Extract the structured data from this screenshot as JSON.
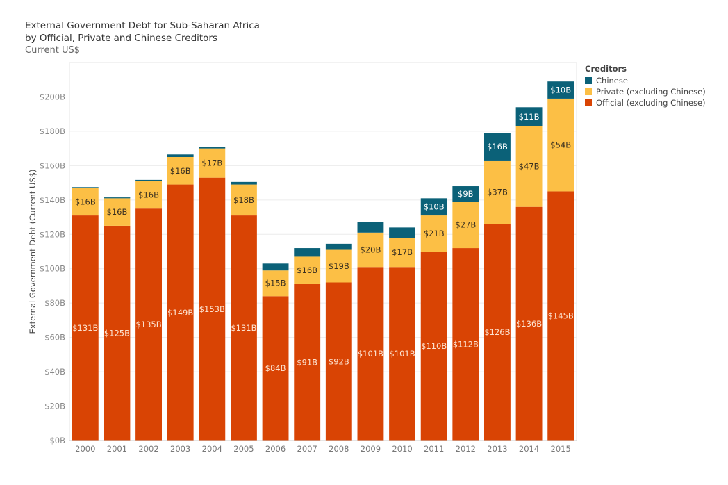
{
  "title_lines": [
    "External Government Debt for Sub-Saharan Africa",
    "by Official, Private and Chinese Creditors"
  ],
  "subtitle": "Current US$",
  "legend": {
    "title": "Creditors",
    "items": [
      {
        "label": "Chinese",
        "color": "#0b6178"
      },
      {
        "label": "Private (excluding Chinese)",
        "color": "#fcbf45"
      },
      {
        "label": "Official (excluding Chinese)",
        "color": "#d94404"
      }
    ]
  },
  "chart_data": {
    "type": "bar",
    "stacked": true,
    "ylabel": "External Government Debt (Current US$)",
    "ylim": [
      0,
      220
    ],
    "yticks": [
      0,
      20,
      40,
      60,
      80,
      100,
      120,
      140,
      160,
      180,
      200
    ],
    "ytick_labels": [
      "$0B",
      "$20B",
      "$40B",
      "$60B",
      "$80B",
      "$100B",
      "$120B",
      "$140B",
      "$160B",
      "$180B",
      "$200B"
    ],
    "categories": [
      "2000",
      "2001",
      "2002",
      "2003",
      "2004",
      "2005",
      "2006",
      "2007",
      "2008",
      "2009",
      "2010",
      "2011",
      "2012",
      "2013",
      "2014",
      "2015"
    ],
    "series": [
      {
        "name": "Official (excluding Chinese)",
        "color": "#d94404",
        "values": [
          131,
          125,
          135,
          149,
          153,
          131,
          84,
          91,
          92,
          101,
          101,
          110,
          112,
          126,
          136,
          145
        ],
        "labels": [
          "$131B",
          "$125B",
          "$135B",
          "$149B",
          "$153B",
          "$131B",
          "$84B",
          "$91B",
          "$92B",
          "$101B",
          "$101B",
          "$110B",
          "$112B",
          "$126B",
          "$136B",
          "$145B"
        ]
      },
      {
        "name": "Private (excluding Chinese)",
        "color": "#fcbf45",
        "values": [
          16,
          16,
          16,
          16,
          17,
          18,
          15,
          16,
          19,
          20,
          17,
          21,
          27,
          37,
          47,
          54
        ],
        "labels": [
          "$16B",
          "$16B",
          "$16B",
          "$16B",
          "$17B",
          "$18B",
          "$15B",
          "$16B",
          "$19B",
          "$20B",
          "$17B",
          "$21B",
          "$27B",
          "$37B",
          "$47B",
          "$54B"
        ]
      },
      {
        "name": "Chinese",
        "color": "#0b6178",
        "values": [
          0.5,
          0.5,
          0.7,
          1.5,
          1.0,
          1.5,
          4,
          5,
          3.5,
          6,
          6,
          10,
          9,
          16,
          11,
          10
        ],
        "labels": [
          "",
          "",
          "",
          "",
          "",
          "",
          "",
          "",
          "",
          "",
          "",
          "$10B",
          "$9B",
          "$16B",
          "$11B",
          "$10B"
        ]
      }
    ]
  }
}
